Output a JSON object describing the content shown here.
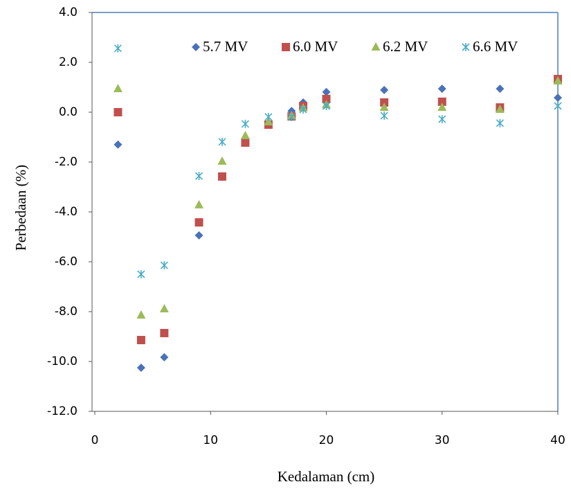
{
  "chart_data": {
    "type": "scatter",
    "x_label": "Kedalaman (cm)",
    "y_label": "Perbedaan (%)",
    "x": [
      2,
      4,
      6,
      9,
      11,
      13,
      15,
      17,
      18,
      20,
      25,
      30,
      35,
      40
    ],
    "series": [
      {
        "name": "5.7 MV",
        "color": "#4a72b8",
        "marker": "diamond",
        "values": [
          -1.3,
          -10.25,
          -9.83,
          -4.94,
          -2.6,
          -1.22,
          -0.44,
          0.05,
          0.39,
          0.81,
          0.89,
          0.94,
          0.94,
          0.58
        ]
      },
      {
        "name": "6.0 MV",
        "color": "#c0504d",
        "marker": "square",
        "values": [
          0.0,
          -9.14,
          -8.86,
          -4.42,
          -2.58,
          -1.22,
          -0.5,
          -0.17,
          0.25,
          0.53,
          0.39,
          0.42,
          0.19,
          1.33
        ]
      },
      {
        "name": "6.2 MV",
        "color": "#9bbb59",
        "marker": "triangle",
        "values": [
          0.94,
          -8.14,
          -7.89,
          -3.72,
          -1.97,
          -0.94,
          -0.39,
          -0.14,
          0.17,
          0.3,
          0.19,
          0.19,
          0.11,
          1.25
        ]
      },
      {
        "name": "6.6 MV",
        "color": "#4bacc6",
        "marker": "star",
        "values": [
          2.56,
          -6.5,
          -6.14,
          -2.56,
          -1.19,
          -0.47,
          -0.19,
          -0.19,
          0.11,
          0.25,
          -0.14,
          -0.28,
          -0.44,
          0.25
        ]
      }
    ],
    "xlim": [
      0,
      40
    ],
    "xticks": [
      0,
      10,
      20,
      30,
      40
    ],
    "ylim": [
      -12,
      4
    ],
    "yticks": [
      {
        "value": 4,
        "label": "4.0"
      },
      {
        "value": 2,
        "label": "2.0"
      },
      {
        "value": 0,
        "label": "0.0"
      },
      {
        "value": -2,
        "label": "-2.0"
      },
      {
        "value": -4,
        "label": "-4.0"
      },
      {
        "value": -6,
        "label": "-6.0"
      },
      {
        "value": -8,
        "label": "-8.0"
      },
      {
        "value": -10,
        "label": "-10.0"
      },
      {
        "value": -12,
        "label": "-12.0"
      }
    ],
    "grid": false,
    "legend": "top"
  }
}
